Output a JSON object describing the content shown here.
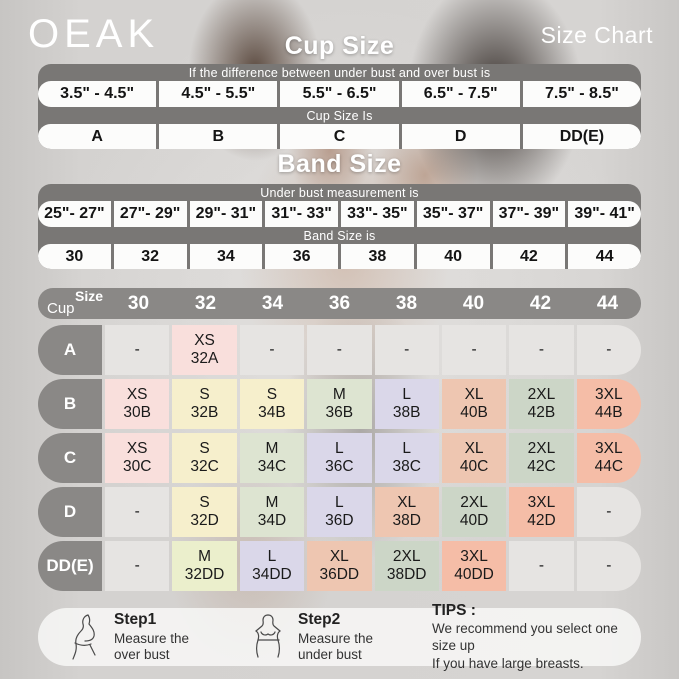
{
  "brand": "OEAK",
  "page_title": "Size Chart",
  "cup_section": {
    "title": "Cup Size",
    "condition_label": "If the  difference between under bust and over bust is",
    "ranges": [
      "3.5\" -  4.5\"",
      "4.5\" -  5.5\"",
      "5.5\" -  6.5\"",
      "6.5\" -  7.5\"",
      "7.5\" -  8.5\""
    ],
    "result_label": "Cup Size Is",
    "cups": [
      "A",
      "B",
      "C",
      "D",
      "DD(E)"
    ]
  },
  "band_section": {
    "title": "Band Size",
    "condition_label": "Under bust measurement is",
    "ranges": [
      "25\"- 27\"",
      "27\"- 29\"",
      "29\"- 31\"",
      "31\"- 33\"",
      "33\"- 35\"",
      "35\"- 37\"",
      "37\"- 39\"",
      "39\"- 41\""
    ],
    "result_label": "Band Size is",
    "bands": [
      "30",
      "32",
      "34",
      "36",
      "38",
      "40",
      "42",
      "44"
    ]
  },
  "matrix": {
    "corner_top": "Size",
    "corner_bottom": "Cup",
    "columns": [
      "30",
      "32",
      "34",
      "36",
      "38",
      "40",
      "42",
      "44"
    ],
    "rows": [
      {
        "label": "A",
        "cells": [
          {
            "size": "-",
            "code": "",
            "color": "gray"
          },
          {
            "size": "XS",
            "code": "32A",
            "color": "pink"
          },
          {
            "size": "-",
            "code": "",
            "color": "gray"
          },
          {
            "size": "-",
            "code": "",
            "color": "gray"
          },
          {
            "size": "-",
            "code": "",
            "color": "gray"
          },
          {
            "size": "-",
            "code": "",
            "color": "gray"
          },
          {
            "size": "-",
            "code": "",
            "color": "gray"
          },
          {
            "size": "-",
            "code": "",
            "color": "gray"
          }
        ]
      },
      {
        "label": "B",
        "cells": [
          {
            "size": "XS",
            "code": "30B",
            "color": "pink"
          },
          {
            "size": "S",
            "code": "32B",
            "color": "cream"
          },
          {
            "size": "S",
            "code": "34B",
            "color": "cream"
          },
          {
            "size": "M",
            "code": "36B",
            "color": "green"
          },
          {
            "size": "L",
            "code": "38B",
            "color": "lavender"
          },
          {
            "size": "XL",
            "code": "40B",
            "color": "salmon"
          },
          {
            "size": "2XL",
            "code": "42B",
            "color": "sage"
          },
          {
            "size": "3XL",
            "code": "44B",
            "color": "salmon_deep"
          }
        ]
      },
      {
        "label": "C",
        "cells": [
          {
            "size": "XS",
            "code": "30C",
            "color": "pink"
          },
          {
            "size": "S",
            "code": "32C",
            "color": "cream"
          },
          {
            "size": "M",
            "code": "34C",
            "color": "green"
          },
          {
            "size": "L",
            "code": "36C",
            "color": "lavender"
          },
          {
            "size": "L",
            "code": "38C",
            "color": "lavender"
          },
          {
            "size": "XL",
            "code": "40C",
            "color": "salmon"
          },
          {
            "size": "2XL",
            "code": "42C",
            "color": "sage"
          },
          {
            "size": "3XL",
            "code": "44C",
            "color": "salmon_deep"
          }
        ]
      },
      {
        "label": "D",
        "cells": [
          {
            "size": "-",
            "code": "",
            "color": "gray"
          },
          {
            "size": "S",
            "code": "32D",
            "color": "cream"
          },
          {
            "size": "M",
            "code": "34D",
            "color": "green"
          },
          {
            "size": "L",
            "code": "36D",
            "color": "lavender"
          },
          {
            "size": "XL",
            "code": "38D",
            "color": "salmon"
          },
          {
            "size": "2XL",
            "code": "40D",
            "color": "sage"
          },
          {
            "size": "3XL",
            "code": "42D",
            "color": "salmon_deep"
          },
          {
            "size": "-",
            "code": "",
            "color": "gray"
          }
        ]
      },
      {
        "label": "DD(E)",
        "cells": [
          {
            "size": "-",
            "code": "",
            "color": "gray"
          },
          {
            "size": "M",
            "code": "32DD",
            "color": "lime"
          },
          {
            "size": "L",
            "code": "34DD",
            "color": "lavender"
          },
          {
            "size": "XL",
            "code": "36DD",
            "color": "salmon"
          },
          {
            "size": "2XL",
            "code": "38DD",
            "color": "sage"
          },
          {
            "size": "3XL",
            "code": "40DD",
            "color": "salmon_deep"
          },
          {
            "size": "-",
            "code": "",
            "color": "gray"
          },
          {
            "size": "-",
            "code": "",
            "color": "gray"
          }
        ]
      }
    ]
  },
  "footer": {
    "step1_title": "Step1",
    "step1_text": "Measure the over bust",
    "step2_title": "Step2",
    "step2_text": "Measure the under bust",
    "tips_title": "TIPS :",
    "tips_line1": "We recommend you select one size up",
    "tips_line2": "If you have large breasts."
  },
  "colors": {
    "table_dark": "#797775",
    "header_gray": "#8a8886",
    "cell_gray": "#e6e4e2",
    "cell_pink": "#f9dfdc",
    "cell_cream": "#f6efcc",
    "cell_lime": "#ebefcc",
    "cell_green": "#dde4d1",
    "cell_sage": "#ccd6c7",
    "cell_lavender": "#dad7e9",
    "cell_salmon": "#eec6b1",
    "cell_salmon_deep": "#f5bda7",
    "text_light": "#ffffff",
    "text_dark": "#1a1a1a"
  }
}
